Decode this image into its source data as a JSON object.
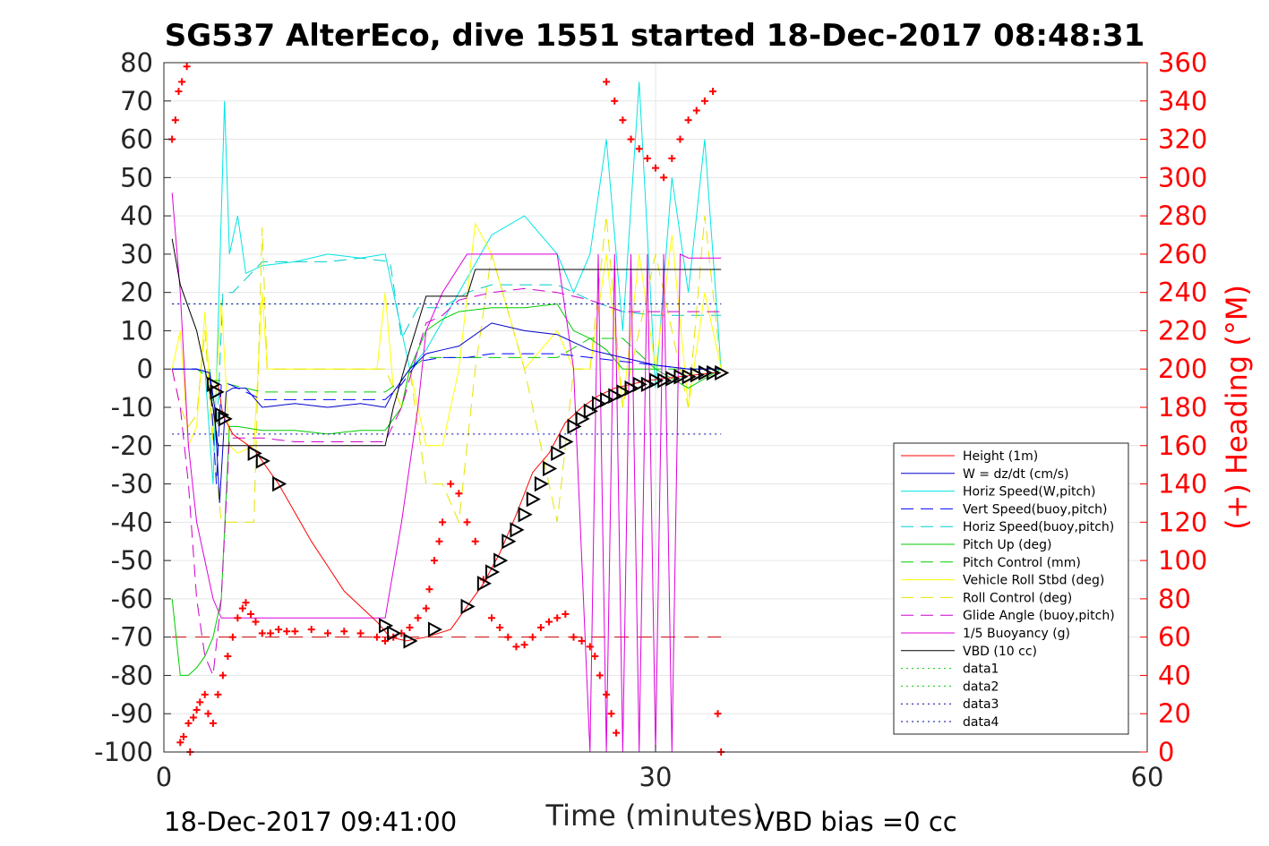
{
  "chart_data": {
    "type": "line",
    "title": "SG537 AlterEco, dive 1551 started 18-Dec-2017 08:48:31",
    "xlabel": "Time (minutes)",
    "ylabel": "",
    "y2label": "(+) Heading (°M)",
    "xlim": [
      0,
      60
    ],
    "ylim": [
      -100,
      80
    ],
    "y2lim": [
      0,
      360
    ],
    "xticks": [
      "0",
      "30",
      "60"
    ],
    "yticks": [
      "80",
      "70",
      "60",
      "50",
      "40",
      "30",
      "20",
      "10",
      "0",
      "-10",
      "-20",
      "-30",
      "-40",
      "-50",
      "-60",
      "-70",
      "-80",
      "-90",
      "-100"
    ],
    "y2ticks": [
      "360",
      "340",
      "320",
      "300",
      "280",
      "260",
      "240",
      "220",
      "200",
      "180",
      "160",
      "140",
      "120",
      "100",
      "80",
      "60",
      "40",
      "20",
      "0"
    ],
    "grid": true,
    "legend_position": "bottom-right",
    "footer_left": "18-Dec-2017 09:41:00",
    "footer_right": "VBD bias =0 cc",
    "colors": {
      "height": "#ff0000",
      "w": "#0000cc",
      "horiz_w": "#00e5e5",
      "vert_buoy": "#0000ff",
      "horiz_buoy": "#00cccc",
      "pitch": "#00cc00",
      "pitch_ctrl": "#00cc00",
      "roll": "#ffff00",
      "roll_ctrl": "#e5e500",
      "glide": "#cc00cc",
      "buoy": "#dd00dd",
      "vbd": "#000000",
      "heading": "#ff0000"
    },
    "series": [
      {
        "name": "Height (1m)",
        "key": "height",
        "style": "solid",
        "x": [
          3.3,
          3.6,
          4.2,
          5.5,
          7.0,
          9.0,
          11.0,
          13.0,
          13.8,
          14.8,
          16.0,
          17.5,
          18.5,
          19.5,
          20.5,
          21.5,
          22.5,
          23.5,
          24.5,
          25.5,
          26.5,
          27.5,
          28.5,
          29.5,
          30.5,
          31.5,
          32.5,
          33.5,
          34.0
        ],
        "y": [
          -4,
          -12,
          -17,
          -21,
          -30,
          -45,
          -58,
          -66,
          -70,
          -71,
          -70,
          -68,
          -62,
          -56,
          -48,
          -38,
          -27,
          -22,
          -14,
          -10,
          -7,
          -5,
          -4,
          -3,
          -2.5,
          -2,
          -1.5,
          -1,
          -1
        ]
      },
      {
        "name": "W = dz/dt (cm/s)",
        "key": "w",
        "style": "solid",
        "x": [
          0.5,
          2.0,
          2.8,
          3.1,
          3.4,
          3.8,
          4.2,
          5.0,
          6.0,
          8.0,
          10.0,
          12.0,
          13.5,
          14.0,
          14.5,
          15.0,
          15.5,
          16.0,
          17.0,
          18.0,
          20.0,
          22.0,
          24.0,
          25.0,
          26.0,
          27.0,
          28.0,
          30.0,
          32.0,
          34.0
        ],
        "y": [
          0,
          0,
          -1,
          -10,
          -35,
          -6,
          -5,
          -5,
          -10,
          -9,
          -10,
          -9,
          -10,
          -6,
          -3,
          0,
          2,
          4,
          5,
          6,
          12,
          10,
          9,
          7,
          5,
          4,
          3,
          1,
          0,
          0
        ]
      },
      {
        "name": "Horiz Speed(W,pitch)",
        "key": "horiz_w",
        "style": "solid",
        "x": [
          2.5,
          3.0,
          3.3,
          3.7,
          4.0,
          4.5,
          5.0,
          6.0,
          8.0,
          10.0,
          12.0,
          13.5,
          14.5,
          15.0,
          16.0,
          18.0,
          20.0,
          22.0,
          24.0,
          25.0,
          26.0,
          27.0,
          28.0,
          29.0,
          30.0,
          31.0,
          32.0,
          33.0,
          34.0
        ],
        "y": [
          0,
          -30,
          10,
          70,
          30,
          40,
          25,
          27,
          28,
          30,
          29,
          30,
          10,
          0,
          5,
          20,
          35,
          40,
          30,
          20,
          30,
          60,
          10,
          75,
          -5,
          50,
          20,
          60,
          0
        ]
      },
      {
        "name": "Vert Speed(buoy,pitch)",
        "key": "vert_buoy",
        "style": "dash",
        "x": [
          0.5,
          2.0,
          2.8,
          3.2,
          3.5,
          4.0,
          6.0,
          8.0,
          10.0,
          12.0,
          13.5,
          14.5,
          15.5,
          17.0,
          18.5,
          20.0,
          22.0,
          24.0,
          26.0,
          28.0,
          30.0,
          32.0,
          34.0
        ],
        "y": [
          0,
          0,
          -1,
          -30,
          -4,
          -4,
          -8,
          -8,
          -8,
          -8,
          -8,
          -4,
          2,
          3,
          3,
          4,
          4,
          4,
          3,
          2,
          1,
          0,
          0
        ]
      },
      {
        "name": "Horiz Speed(buoy,pitch)",
        "key": "horiz_buoy",
        "style": "dash",
        "x": [
          2.8,
          3.2,
          3.6,
          4.2,
          6.0,
          8.0,
          10.0,
          12.0,
          13.8,
          14.5,
          15.5,
          17.0,
          18.5,
          20.0,
          22.0,
          24.0,
          26.0,
          28.0,
          30.0,
          32.0,
          34.0
        ],
        "y": [
          0,
          -20,
          20,
          20,
          28,
          28,
          28,
          29,
          28,
          8,
          16,
          16,
          20,
          22,
          22,
          22,
          18,
          15,
          14,
          14,
          14
        ]
      },
      {
        "name": "Pitch Up (deg)",
        "key": "pitch",
        "style": "solid",
        "x": [
          0.5,
          1.0,
          1.5,
          2.0,
          2.5,
          3.0,
          3.5,
          4.0,
          4.5,
          6.0,
          8.0,
          10.0,
          12.0,
          13.5,
          14.5,
          15.0,
          15.5,
          16.0,
          17.0,
          18.0,
          20.0,
          22.0,
          24.0,
          25.0,
          26.0,
          27.0,
          28.0,
          30.0,
          32.0,
          34.0
        ],
        "y": [
          -60,
          -80,
          -80,
          -78,
          -75,
          -70,
          -60,
          -15,
          -15,
          -16,
          -16,
          -17,
          -16,
          -16,
          -10,
          0,
          5,
          10,
          13,
          15,
          16,
          16,
          17,
          10,
          8,
          5,
          0,
          0,
          -5,
          0
        ]
      },
      {
        "name": "Pitch Control (mm)",
        "key": "pitch_ctrl",
        "style": "dash",
        "x": [
          0.5,
          2.0,
          3.0,
          3.5,
          4.0,
          6.0,
          8.0,
          10.0,
          12.0,
          13.5,
          14.5,
          15.0,
          16.0,
          17.0,
          20.0,
          24.0,
          26.0,
          28.0,
          30.0,
          32.0,
          34.0
        ],
        "y": [
          0,
          0,
          -3,
          -3,
          -4,
          -6,
          -6,
          -6,
          -6,
          -6,
          -3,
          0,
          3,
          3,
          3,
          3,
          8,
          8,
          0,
          0,
          0
        ]
      },
      {
        "name": "Vehicle Roll Stbd (deg)",
        "key": "roll",
        "style": "solid",
        "x": [
          0.5,
          1.0,
          1.5,
          2.0,
          2.5,
          3.0,
          3.5,
          4.0,
          4.5,
          5.5,
          6.0,
          6.3,
          7.0,
          8.0,
          10.0,
          12.0,
          13.0,
          13.5,
          14.0,
          14.5,
          15.0,
          16.0,
          17.0,
          18.0,
          19.0,
          20.0,
          22.0,
          24.0,
          25.0,
          26.0,
          27.0,
          28.0,
          29.0,
          30.0,
          31.0,
          32.0,
          33.0,
          34.0
        ],
        "y": [
          0,
          10,
          -20,
          -15,
          15,
          -18,
          18,
          -20,
          -22,
          -20,
          20,
          0,
          0,
          0,
          0,
          0,
          0,
          20,
          -5,
          -10,
          0,
          -20,
          -20,
          0,
          38,
          30,
          0,
          10,
          0,
          0,
          30,
          -10,
          30,
          0,
          35,
          -10,
          20,
          0
        ]
      },
      {
        "name": "Roll Control (deg)",
        "key": "roll_ctrl",
        "style": "dash",
        "x": [
          0.5,
          1.0,
          1.5,
          2.0,
          2.5,
          3.0,
          3.5,
          4.0,
          5.5,
          6.0,
          6.3,
          7.0,
          8.0,
          10.0,
          12.0,
          13.5,
          14.5,
          15.0,
          16.0,
          17.0,
          18.0,
          19.0,
          20.0,
          22.0,
          24.0,
          25.0,
          26.0,
          27.0,
          28.0,
          30.0,
          32.0,
          33.0,
          34.0
        ],
        "y": [
          0,
          -10,
          -15,
          -12,
          10,
          -20,
          -40,
          -40,
          -40,
          37,
          0,
          0,
          0,
          0,
          0,
          0,
          -10,
          0,
          -30,
          -30,
          -40,
          0,
          30,
          0,
          -40,
          0,
          0,
          40,
          -10,
          30,
          -10,
          40,
          0
        ]
      },
      {
        "name": "Glide Angle (buoy,pitch)",
        "key": "glide",
        "style": "dash",
        "x": [
          0.5,
          1.0,
          1.5,
          2.0,
          2.5,
          3.0,
          3.5,
          4.0,
          6.0,
          8.0,
          10.0,
          12.0,
          13.5,
          14.5,
          15.5,
          16.0,
          17.0,
          18.0,
          20.0,
          22.0,
          24.0,
          26.0,
          28.0,
          30.0,
          32.0,
          34.0
        ],
        "y": [
          0,
          -10,
          -30,
          -60,
          -75,
          -80,
          -60,
          -18,
          -18,
          -19,
          -19,
          -19,
          -19,
          -10,
          5,
          12,
          14,
          18,
          20,
          21,
          20,
          18,
          15,
          15,
          15,
          15
        ]
      },
      {
        "name": "1/5 Buoyancy (g)",
        "key": "buoy",
        "style": "solid",
        "x": [
          0.5,
          1.0,
          1.5,
          2.0,
          2.5,
          3.0,
          3.5,
          4.0,
          6.0,
          8.0,
          10.0,
          12.0,
          13.5,
          14.5,
          15.5,
          16.0,
          17.0,
          18.5,
          20.0,
          24.0,
          25.0,
          26.0,
          26.5,
          27.0,
          27.5,
          28.0,
          28.5,
          29.0,
          29.5,
          30.0,
          30.5,
          31.0,
          31.5,
          32.0,
          33.0,
          34.0
        ],
        "y": [
          46,
          20,
          -20,
          -40,
          -50,
          -60,
          -65,
          -65,
          -65,
          -65,
          -65,
          -65,
          -65,
          -40,
          -10,
          10,
          20,
          30,
          30,
          30,
          0,
          -100,
          30,
          -100,
          30,
          -100,
          30,
          -100,
          30,
          -100,
          30,
          -100,
          30,
          29,
          29,
          29
        ]
      },
      {
        "name": "VBD (10 cc)",
        "key": "vbd",
        "style": "solid",
        "x": [
          0.5,
          1.0,
          2.0,
          2.5,
          3.0,
          3.3,
          4.0,
          6.0,
          8.0,
          10.0,
          12.0,
          13.5,
          14.0,
          15.0,
          16.0,
          17.0,
          18.5,
          19.0,
          20.0,
          24.0,
          26.0,
          28.0,
          30.0,
          32.0,
          34.0
        ],
        "y": [
          34,
          22,
          10,
          0,
          -10,
          -20,
          -20,
          -20,
          -20,
          -20,
          -20,
          -20,
          -10,
          5,
          19,
          19,
          19,
          26,
          26,
          26,
          26,
          26,
          26,
          26,
          26
        ]
      },
      {
        "name": "data1",
        "key": "data1",
        "style": "dot",
        "x": [
          0.5,
          34.0
        ],
        "y": [
          17,
          17
        ]
      },
      {
        "name": "data2",
        "key": "data2",
        "style": "dot",
        "x": [
          0.5,
          34.0
        ],
        "y": [
          17,
          17
        ]
      },
      {
        "name": "data3",
        "key": "data3",
        "style": "dot",
        "x": [
          0.5,
          34.0
        ],
        "y": [
          -17,
          -17
        ]
      },
      {
        "name": "data4",
        "key": "data4",
        "style": "dot",
        "x": [
          0.5,
          34.0
        ],
        "y": [
          17,
          17
        ]
      }
    ],
    "reference_line": {
      "y": -70,
      "x": [
        0.5,
        34.0
      ],
      "color": "#cc0000"
    },
    "heading_points": {
      "x": [
        0.5,
        0.7,
        0.9,
        1.1,
        1.4,
        1.6,
        1.0,
        1.2,
        1.5,
        1.8,
        2.0,
        2.2,
        2.5,
        2.7,
        3.0,
        3.3,
        3.6,
        3.9,
        4.2,
        4.5,
        4.8,
        5.0,
        5.3,
        5.6,
        6.0,
        6.5,
        7.0,
        7.5,
        8.0,
        9.0,
        10.0,
        11.0,
        12.0,
        13.0,
        13.5,
        14.0,
        14.5,
        15.0,
        15.5,
        16.0,
        16.2,
        16.5,
        16.8,
        17.0,
        17.5,
        18.0,
        18.5,
        19.0,
        19.5,
        20.0,
        20.5,
        21.0,
        21.5,
        22.0,
        22.5,
        23.0,
        23.5,
        24.0,
        24.5,
        25.0,
        25.5,
        26.0,
        26.3,
        26.6,
        27.0,
        27.3,
        27.6,
        27.0,
        27.5,
        28.0,
        28.5,
        29.0,
        29.5,
        30.0,
        30.5,
        31.0,
        31.5,
        32.0,
        32.5,
        33.0,
        33.5,
        33.8,
        34.0
      ],
      "y": [
        320,
        330,
        345,
        350,
        358,
        0,
        5,
        8,
        15,
        18,
        22,
        26,
        30,
        20,
        15,
        30,
        40,
        50,
        60,
        70,
        75,
        78,
        72,
        68,
        62,
        62,
        64,
        63,
        63,
        64,
        62,
        63,
        62,
        60,
        58,
        60,
        62,
        65,
        70,
        75,
        85,
        100,
        110,
        120,
        140,
        135,
        120,
        110,
        90,
        70,
        65,
        60,
        55,
        56,
        60,
        65,
        68,
        70,
        72,
        60,
        58,
        55,
        50,
        40,
        30,
        20,
        10,
        350,
        340,
        330,
        320,
        315,
        310,
        305,
        300,
        310,
        320,
        330,
        335,
        340,
        345,
        20,
        0
      ]
    },
    "markers": {
      "x": [
        3.0,
        3.2,
        3.5,
        3.7,
        5.5,
        6.0,
        7.0,
        13.5,
        14.0,
        15.0,
        16.5,
        18.5,
        19.5,
        20.0,
        20.5,
        21.0,
        21.5,
        22.0,
        22.5,
        23.0,
        23.5,
        24.0,
        24.5,
        25.0,
        25.5,
        26.0,
        26.5,
        27.0,
        27.5,
        28.0,
        28.5,
        29.0,
        29.5,
        30.0,
        30.5,
        31.0,
        31.5,
        32.0,
        32.5,
        33.0,
        33.5,
        34.0
      ],
      "y": [
        -4,
        -6,
        -12,
        -13,
        -22,
        -24,
        -30,
        -67,
        -69,
        -71,
        -68,
        -62,
        -56,
        -53,
        -50,
        -45,
        -42,
        -38,
        -34,
        -30,
        -26,
        -22,
        -19,
        -15,
        -13,
        -11,
        -9,
        -8,
        -7,
        -6,
        -5,
        -4,
        -4,
        -3,
        -3,
        -2.5,
        -2,
        -2,
        -1.5,
        -1,
        -1,
        -1
      ]
    }
  }
}
